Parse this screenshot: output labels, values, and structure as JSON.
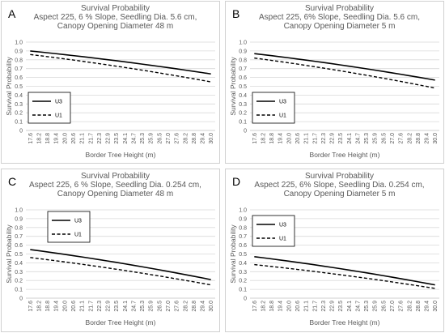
{
  "chart_data": [
    {
      "type": "line",
      "panel_label": "A",
      "title": "Survival Probability",
      "subtitle_lines": [
        "Aspect 225, 6 % Slope, Seedling Dia. 5.6 cm,",
        "Canopy Opening Diameter 48 m"
      ],
      "xlabel": "Border Tree Height (m)",
      "ylabel": "Survival Probability",
      "ylim": [
        0,
        1.0
      ],
      "y_ticks": [
        "0",
        "0.1",
        "0.2",
        "0.3",
        "0.4",
        "0.5",
        "0.6",
        "0.7",
        "0.8",
        "0.9",
        "1.0"
      ],
      "x_ticks": [
        "17.6",
        "18.2",
        "18.8",
        "19.4",
        "20.0",
        "20.6",
        "21.1",
        "21.7",
        "22.3",
        "22.9",
        "23.5",
        "24.1",
        "24.7",
        "25.3",
        "25.9",
        "26.5",
        "27.0",
        "27.6",
        "28.2",
        "28.8",
        "29.4",
        "30.0"
      ],
      "grid": true,
      "legend_position": "left-middle",
      "series": [
        {
          "name": "U3",
          "style": "solid",
          "start": 0.9,
          "end": 0.64
        },
        {
          "name": "U1",
          "style": "dashed",
          "start": 0.86,
          "end": 0.55
        }
      ]
    },
    {
      "type": "line",
      "panel_label": "B",
      "title": "Survival Probability",
      "subtitle_lines": [
        "Aspect 225, 6% Slope, Seedling Dia. 5.6 cm,",
        "Canopy Opening Diameter 5 m"
      ],
      "xlabel": "Border Tree Height (m)",
      "ylabel": "Survival Probability",
      "ylim": [
        0,
        1.0
      ],
      "y_ticks": [
        "0",
        "0.1",
        "0.2",
        "0.3",
        "0.4",
        "0.5",
        "0.6",
        "0.7",
        "0.8",
        "0.9",
        "1.0"
      ],
      "x_ticks": [
        "17.6",
        "18.2",
        "18.8",
        "19.4",
        "20.0",
        "20.6",
        "21.1",
        "21.7",
        "22.3",
        "22.9",
        "23.5",
        "24.1",
        "24.7",
        "25.3",
        "25.9",
        "26.5",
        "27.0",
        "27.6",
        "28.2",
        "28.8",
        "29.4",
        "30.0"
      ],
      "grid": true,
      "legend_position": "left-middle",
      "series": [
        {
          "name": "U3",
          "style": "solid",
          "start": 0.87,
          "end": 0.57
        },
        {
          "name": "U1",
          "style": "dashed",
          "start": 0.82,
          "end": 0.48
        }
      ]
    },
    {
      "type": "line",
      "panel_label": "C",
      "title": "Survival Probability",
      "subtitle_lines": [
        "Aspect 225, 6 % Slope, Seedling Dia. 0.254 cm,",
        "Canopy Opening Diameter 48 m"
      ],
      "xlabel": "Border Tree Height (m)",
      "ylabel": "Survival Probability",
      "ylim": [
        0,
        1.0
      ],
      "y_ticks": [
        "0",
        "0.1",
        "0.2",
        "0.3",
        "0.4",
        "0.5",
        "0.6",
        "0.7",
        "0.8",
        "0.9",
        "1.0"
      ],
      "x_ticks": [
        "17.6",
        "18.2",
        "18.8",
        "19.4",
        "20.0",
        "20.6",
        "21.1",
        "21.7",
        "22.3",
        "22.9",
        "23.5",
        "24.1",
        "24.7",
        "25.3",
        "25.9",
        "26.5",
        "27.0",
        "27.6",
        "28.2",
        "28.8",
        "29.4",
        "30.0"
      ],
      "grid": true,
      "legend_position": "top-left",
      "series": [
        {
          "name": "U3",
          "style": "solid",
          "start": 0.55,
          "end": 0.21
        },
        {
          "name": "U1",
          "style": "dashed",
          "start": 0.46,
          "end": 0.15
        }
      ]
    },
    {
      "type": "line",
      "panel_label": "D",
      "title": "Survival Probability",
      "subtitle_lines": [
        "Aspect 225, 6% Slope, Seedling Dia. 0.254 cm,",
        "Canopy Opening Diameter 5 m"
      ],
      "xlabel": "Border Tree Height (m)",
      "ylabel": "Survival Probability",
      "ylim": [
        0,
        1.0
      ],
      "y_ticks": [
        "0",
        "0.1",
        "0.2",
        "0.3",
        "0.4",
        "0.5",
        "0.6",
        "0.7",
        "0.8",
        "0.9",
        "1.0"
      ],
      "x_ticks": [
        "17.6",
        "18.2",
        "18.8",
        "19.4",
        "20.0",
        "20.6",
        "21.1",
        "21.7",
        "22.3",
        "22.9",
        "23.5",
        "24.1",
        "24.7",
        "25.3",
        "25.9",
        "26.5",
        "27.0",
        "27.6",
        "28.2",
        "28.8",
        "29.4",
        "30.0"
      ],
      "grid": true,
      "legend_position": "top-left",
      "series": [
        {
          "name": "U3",
          "style": "solid",
          "start": 0.47,
          "end": 0.15
        },
        {
          "name": "U1",
          "style": "dashed",
          "start": 0.38,
          "end": 0.11
        }
      ]
    }
  ]
}
